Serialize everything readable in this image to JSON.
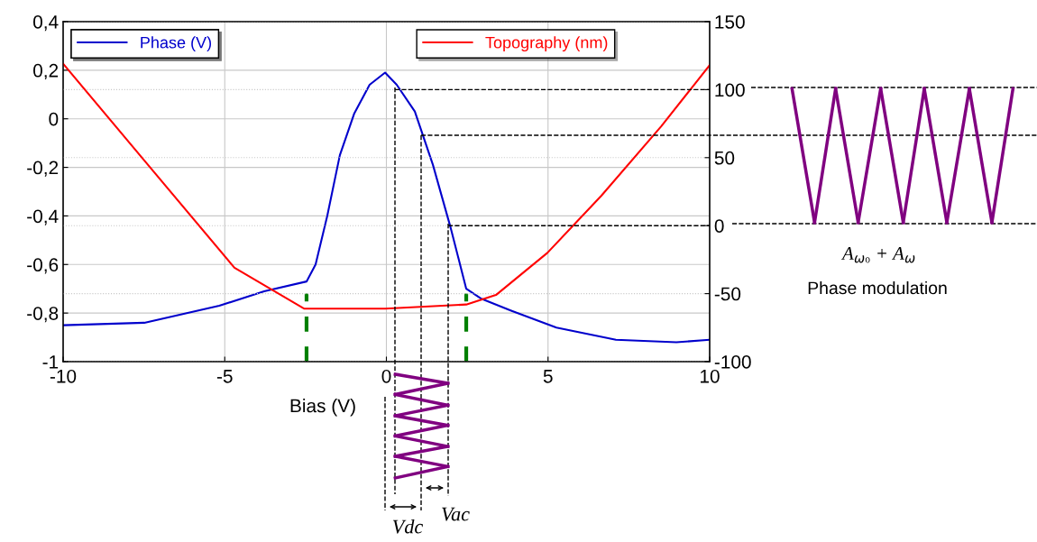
{
  "chart_data": {
    "type": "line",
    "xlabel": "Bias (V)",
    "xlim": [
      -10,
      10
    ],
    "xticks": [
      -10,
      -5,
      0,
      5,
      10
    ],
    "ylim": [
      -1,
      0.4
    ],
    "yticks": [
      {
        "value": -1,
        "label": "-1"
      },
      {
        "value": -0.8,
        "label": "-0,8"
      },
      {
        "value": -0.6,
        "label": "-0,6"
      },
      {
        "value": -0.4,
        "label": "-0,4"
      },
      {
        "value": -0.2,
        "label": "-0,2"
      },
      {
        "value": 0,
        "label": "0"
      },
      {
        "value": 0.2,
        "label": "0,2"
      },
      {
        "value": 0.4,
        "label": "0,4"
      }
    ],
    "y2lim": [
      -100,
      150
    ],
    "y2ticks": [
      -100,
      -50,
      0,
      50,
      100,
      150
    ],
    "grid": true,
    "legend": "top",
    "marker": "none",
    "line_style": "solid",
    "series": [
      {
        "name": "Phase (V)",
        "color": "#0000cc",
        "x": [
          -10,
          -7.49,
          -5.17,
          -3.78,
          -2.47,
          -2.19,
          -1.83,
          -1.44,
          -1.0,
          -0.52,
          -0.04,
          0.32,
          0.88,
          1.44,
          1.99,
          2.47,
          2.92,
          3.86,
          5.26,
          7.1,
          8.97,
          10
        ],
        "values": [
          -0.85,
          -0.84,
          -0.77,
          -0.71,
          -0.67,
          -0.6,
          -0.4,
          -0.15,
          0.02,
          0.14,
          0.19,
          0.14,
          0.03,
          -0.19,
          -0.45,
          -0.7,
          -0.74,
          -0.79,
          -0.86,
          -0.91,
          -0.92,
          -0.91
        ]
      },
      {
        "name": "Topography (nm)",
        "color": "#ff0000",
        "axis": "y2",
        "x": [
          -10,
          -7.49,
          -4.7,
          -2.55,
          -0.04,
          2.47,
          3.39,
          4.98,
          6.65,
          8.5,
          10
        ],
        "values": [
          119,
          48,
          -31,
          -61,
          -61,
          -58,
          -51,
          -20,
          22,
          73,
          118
        ]
      }
    ],
    "ref_lines": [
      {
        "axis": "y2",
        "value": 100,
        "color": "#000000",
        "line_style": "dashed"
      },
      {
        "axis": "y2",
        "value": 0,
        "color": "#000000",
        "line_style": "dashed"
      },
      {
        "axis": "x",
        "value": -2.47,
        "color": "#008000",
        "line_style": "dashed"
      },
      {
        "axis": "x",
        "value": 2.47,
        "color": "#008000",
        "line_style": "dashed"
      }
    ],
    "annotations": [
      "Vdc",
      "Vac",
      "A$_{ω₀}$ + A$_{ω}$",
      "Phase modulation"
    ]
  }
}
